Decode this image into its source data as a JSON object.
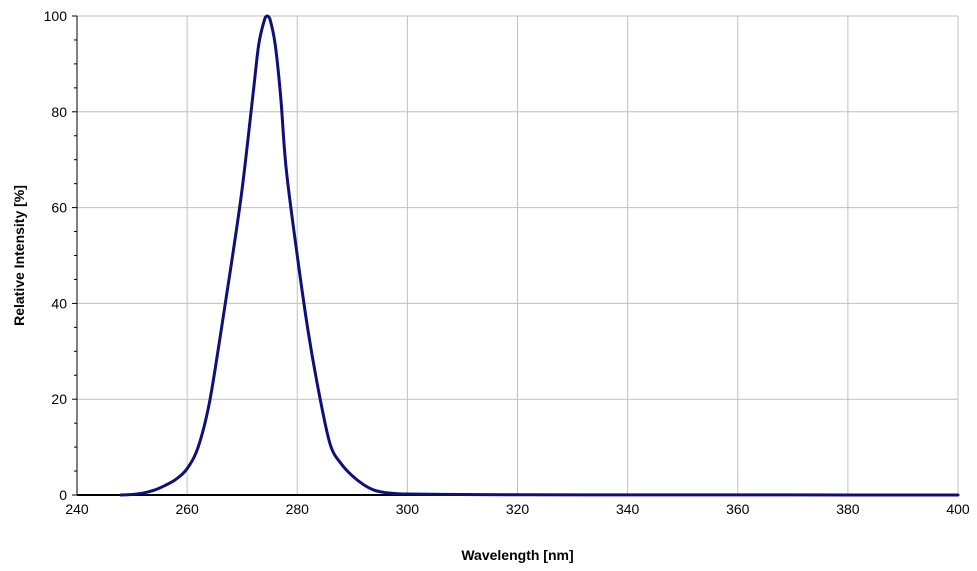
{
  "chart_data": {
    "type": "line",
    "title": "",
    "xlabel": "Wavelength [nm]",
    "ylabel": "Relative Intensity [%]",
    "xlim": [
      240,
      400
    ],
    "ylim": [
      0,
      100
    ],
    "x_ticks": [
      240,
      260,
      280,
      300,
      320,
      340,
      360,
      380,
      400
    ],
    "y_ticks": [
      0,
      20,
      40,
      60,
      80,
      100
    ],
    "grid": true,
    "legend": "none",
    "line_color": "#0f0f7a",
    "grid_color": "#c0c0c0",
    "series": [
      {
        "x": [
          248,
          250,
          252,
          254,
          256,
          258,
          260,
          262,
          264,
          266,
          268,
          270,
          272,
          273,
          274,
          274.5,
          275,
          276,
          277,
          278,
          280,
          282,
          284,
          286,
          288,
          290,
          292,
          294,
          296,
          298,
          300,
          310,
          320,
          340,
          360,
          380,
          400
        ],
        "y": [
          0,
          0.1,
          0.4,
          1.0,
          2.0,
          3.3,
          5.5,
          10,
          19,
          33,
          48,
          64,
          84,
          94,
          99,
          100,
          99.5,
          94,
          83,
          68,
          50,
          34,
          21,
          10.5,
          6.5,
          4,
          2.2,
          1.0,
          0.5,
          0.3,
          0.2,
          0.1,
          0.05,
          0.03,
          0.02,
          0.01,
          0
        ]
      }
    ]
  }
}
